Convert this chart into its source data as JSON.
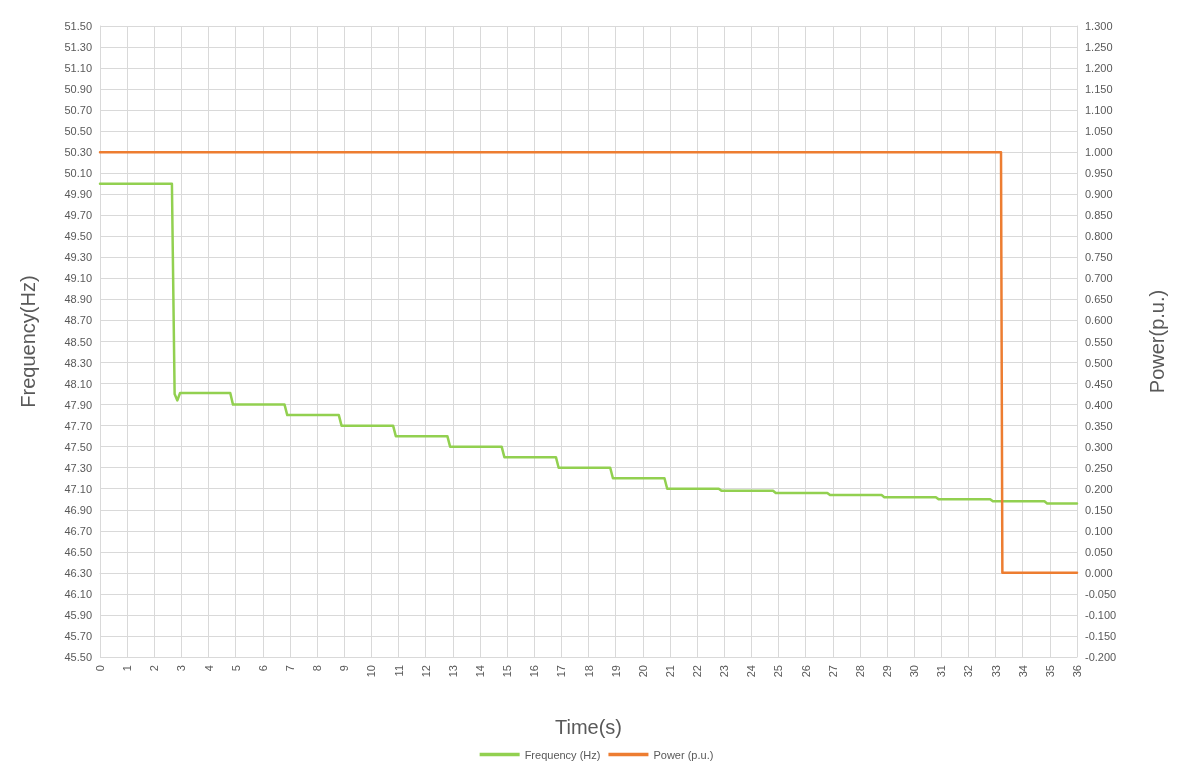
{
  "chart_data": {
    "type": "line",
    "xlabel": "Time(s)",
    "ylabel": "Frequency(Hz)",
    "y2label": "Power(p.u.)",
    "xlim": [
      0,
      36
    ],
    "xticks": [
      0,
      1,
      2,
      3,
      4,
      5,
      6,
      7,
      8,
      9,
      10,
      11,
      12,
      13,
      14,
      15,
      16,
      17,
      18,
      19,
      20,
      21,
      22,
      23,
      24,
      25,
      26,
      27,
      28,
      29,
      30,
      31,
      32,
      33,
      34,
      35,
      36
    ],
    "ylim": [
      45.5,
      51.5
    ],
    "yticks": [
      {
        "value": 45.5,
        "label": "45.50"
      },
      {
        "value": 45.7,
        "label": "45.70"
      },
      {
        "value": 45.9,
        "label": "45.90"
      },
      {
        "value": 46.1,
        "label": "46.10"
      },
      {
        "value": 46.3,
        "label": "46.30"
      },
      {
        "value": 46.5,
        "label": "46.50"
      },
      {
        "value": 46.7,
        "label": "46.70"
      },
      {
        "value": 46.9,
        "label": "46.90"
      },
      {
        "value": 47.1,
        "label": "47.10"
      },
      {
        "value": 47.3,
        "label": "47.30"
      },
      {
        "value": 47.5,
        "label": "47.50"
      },
      {
        "value": 47.7,
        "label": "47.70"
      },
      {
        "value": 47.9,
        "label": "47.90"
      },
      {
        "value": 48.1,
        "label": "48.10"
      },
      {
        "value": 48.3,
        "label": "48.30"
      },
      {
        "value": 48.5,
        "label": "48.50"
      },
      {
        "value": 48.7,
        "label": "48.70"
      },
      {
        "value": 48.9,
        "label": "48.90"
      },
      {
        "value": 49.1,
        "label": "49.10"
      },
      {
        "value": 49.3,
        "label": "49.30"
      },
      {
        "value": 49.5,
        "label": "49.50"
      },
      {
        "value": 49.7,
        "label": "49.70"
      },
      {
        "value": 49.9,
        "label": "49.90"
      },
      {
        "value": 50.1,
        "label": "50.10"
      },
      {
        "value": 50.3,
        "label": "50.30"
      },
      {
        "value": 50.5,
        "label": "50.50"
      },
      {
        "value": 50.7,
        "label": "50.70"
      },
      {
        "value": 50.9,
        "label": "50.90"
      },
      {
        "value": 51.1,
        "label": "51.10"
      },
      {
        "value": 51.3,
        "label": "51.30"
      },
      {
        "value": 51.5,
        "label": "51.50"
      }
    ],
    "y2lim": [
      -0.2,
      1.3
    ],
    "y2ticks": [
      {
        "value": -0.2,
        "label": "-0.200"
      },
      {
        "value": -0.15,
        "label": "-0.150"
      },
      {
        "value": -0.1,
        "label": "-0.100"
      },
      {
        "value": -0.05,
        "label": "-0.050"
      },
      {
        "value": 0,
        "label": "0.000"
      },
      {
        "value": 0.05,
        "label": "0.050"
      },
      {
        "value": 0.1,
        "label": "0.100"
      },
      {
        "value": 0.15,
        "label": "0.150"
      },
      {
        "value": 0.2,
        "label": "0.200"
      },
      {
        "value": 0.25,
        "label": "0.250"
      },
      {
        "value": 0.3,
        "label": "0.300"
      },
      {
        "value": 0.35,
        "label": "0.350"
      },
      {
        "value": 0.4,
        "label": "0.400"
      },
      {
        "value": 0.45,
        "label": "0.450"
      },
      {
        "value": 0.5,
        "label": "0.500"
      },
      {
        "value": 0.55,
        "label": "0.550"
      },
      {
        "value": 0.6,
        "label": "0.600"
      },
      {
        "value": 0.65,
        "label": "0.650"
      },
      {
        "value": 0.7,
        "label": "0.700"
      },
      {
        "value": 0.75,
        "label": "0.750"
      },
      {
        "value": 0.8,
        "label": "0.800"
      },
      {
        "value": 0.85,
        "label": "0.850"
      },
      {
        "value": 0.9,
        "label": "0.900"
      },
      {
        "value": 0.95,
        "label": "0.950"
      },
      {
        "value": 1,
        "label": "1.000"
      },
      {
        "value": 1.05,
        "label": "1.050"
      },
      {
        "value": 1.1,
        "label": "1.100"
      },
      {
        "value": 1.15,
        "label": "1.150"
      },
      {
        "value": 1.2,
        "label": "1.200"
      },
      {
        "value": 1.25,
        "label": "1.250"
      },
      {
        "value": 1.3,
        "label": "1.300"
      }
    ],
    "grid": true,
    "legend": "bottom",
    "marker": "none",
    "line_style": "solid",
    "series": [
      {
        "name": "Frequency (Hz)",
        "color": "#92d050",
        "x": [
          0,
          2.65,
          2.75,
          2.85,
          2.95,
          4.8,
          4.9,
          6.8,
          6.9,
          8.8,
          8.9,
          10.8,
          10.9,
          12.8,
          12.9,
          14.8,
          14.9,
          16.8,
          16.9,
          18.8,
          18.9,
          20.8,
          20.9,
          22.8,
          22.9,
          24.8,
          24.9,
          26.8,
          26.9,
          28.8,
          28.9,
          30.8,
          30.9,
          32.8,
          32.9,
          34.8,
          34.9,
          36
        ],
        "values": [
          50.0,
          50.0,
          48.0,
          47.94,
          48.01,
          48.01,
          47.9,
          47.9,
          47.8,
          47.8,
          47.7,
          47.7,
          47.6,
          47.6,
          47.5,
          47.5,
          47.4,
          47.4,
          47.3,
          47.3,
          47.2,
          47.2,
          47.1,
          47.1,
          47.08,
          47.08,
          47.06,
          47.06,
          47.04,
          47.04,
          47.02,
          47.02,
          47.0,
          47.0,
          46.98,
          46.98,
          46.96,
          46.96
        ]
      },
      {
        "name": "Power (p.u.)",
        "color": "#ed7d31",
        "axis": "y2",
        "x": [
          0,
          33.2,
          33.25,
          36
        ],
        "values": [
          1.0,
          1.0,
          0.0,
          0.0
        ]
      }
    ]
  }
}
